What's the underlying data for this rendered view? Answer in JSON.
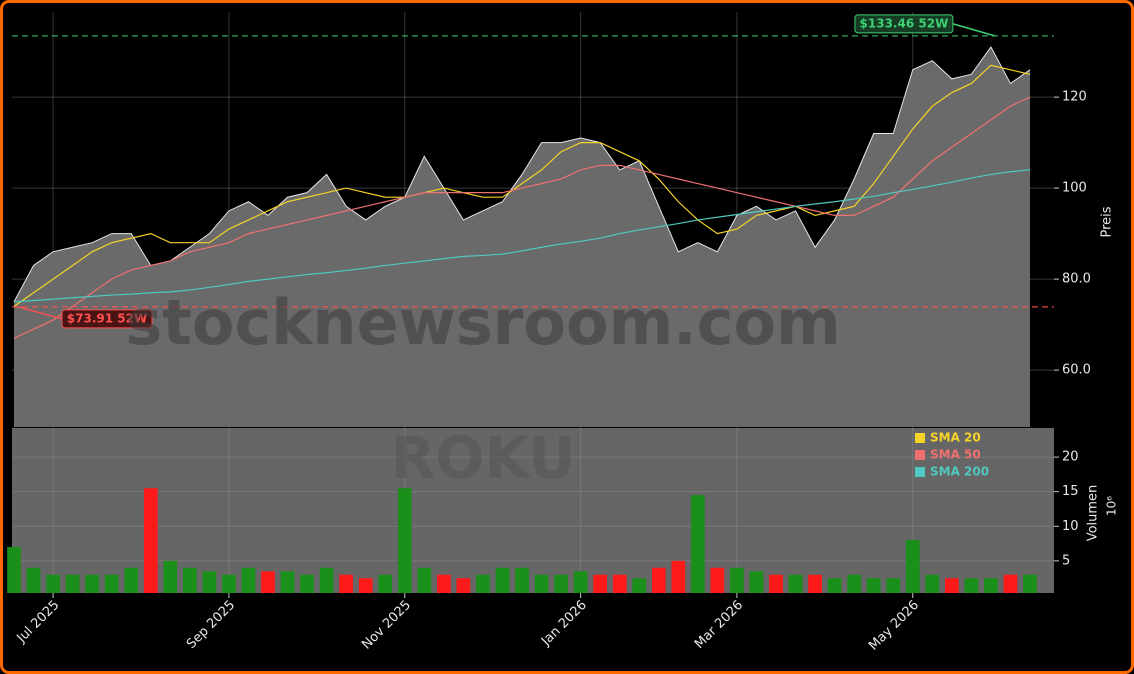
{
  "chart_data": {
    "type": "line",
    "categories": [
      null,
      null,
      "Jul 2025",
      null,
      null,
      null,
      null,
      null,
      null,
      null,
      null,
      "Sep 2025",
      null,
      null,
      null,
      null,
      null,
      null,
      null,
      null,
      "Nov 2025",
      null,
      null,
      null,
      null,
      null,
      null,
      null,
      null,
      "Jan 2026",
      null,
      null,
      null,
      null,
      null,
      null,
      null,
      "Mar 2026",
      null,
      null,
      null,
      null,
      null,
      null,
      null,
      null,
      "May 2026",
      null,
      null,
      null,
      null,
      null,
      null
    ],
    "price": {
      "values": [
        75,
        83,
        86,
        87,
        88,
        90,
        90,
        83,
        84,
        87,
        90,
        95,
        97,
        94,
        98,
        99,
        103,
        96,
        93,
        96,
        98,
        107,
        100,
        93,
        95,
        97,
        103,
        110,
        110,
        111,
        110,
        104,
        106,
        96,
        86,
        88,
        86,
        94,
        96,
        93,
        95,
        87,
        93,
        102,
        112,
        112,
        126,
        128,
        124,
        125,
        131,
        123,
        126
      ],
      "color": "#e6e6e6",
      "fill": "#6a6a6a"
    },
    "series": [
      {
        "name": "SMA 20",
        "color": "#f5d327",
        "values": [
          74,
          77,
          80,
          83,
          86,
          88,
          89,
          90,
          88,
          88,
          88,
          91,
          93,
          95,
          97,
          98,
          99,
          100,
          99,
          98,
          98,
          99,
          100,
          99,
          98,
          98,
          101,
          104,
          108,
          110,
          110,
          108,
          106,
          102,
          97,
          93,
          90,
          91,
          94,
          95,
          96,
          94,
          95,
          96,
          101,
          107,
          113,
          118,
          121,
          123,
          127,
          126,
          125
        ]
      },
      {
        "name": "SMA 50",
        "color": "#f07070",
        "values": [
          67,
          69,
          71,
          74,
          77,
          80,
          82,
          83,
          84,
          86,
          87,
          88,
          90,
          91,
          92,
          93,
          94,
          95,
          96,
          97,
          98,
          99,
          99,
          99,
          99,
          99,
          100,
          101,
          102,
          104,
          105,
          105,
          104,
          103,
          102,
          101,
          100,
          99,
          98,
          97,
          96,
          95,
          94,
          94,
          96,
          98,
          102,
          106,
          109,
          112,
          115,
          118,
          120
        ]
      },
      {
        "name": "SMA 200",
        "color": "#4fc9c0",
        "values": [
          75,
          75.3,
          75.6,
          75.9,
          76.2,
          76.5,
          76.7,
          77,
          77.2,
          77.6,
          78.2,
          78.8,
          79.5,
          80,
          80.5,
          81,
          81.4,
          81.9,
          82.4,
          83,
          83.5,
          84,
          84.5,
          85,
          85.2,
          85.5,
          86.2,
          87,
          87.7,
          88.3,
          89,
          90,
          90.8,
          91.5,
          92.2,
          93,
          93.6,
          94.2,
          94.8,
          95.4,
          96,
          96.5,
          97,
          97.6,
          98.2,
          99,
          99.7,
          100.5,
          101.3,
          102.2,
          103,
          103.6,
          104
        ]
      }
    ],
    "ylim": [
      47.5,
      138.7
    ],
    "yticks": [
      {
        "value": 60,
        "label": "60.0"
      },
      {
        "value": 80,
        "label": "80.0"
      },
      100,
      120
    ],
    "ylabel": "Preis",
    "grid": true,
    "legend": "upper-right",
    "annotations": [
      {
        "value": 133.46,
        "label": "$133.46 52W",
        "color": "#3fcf75",
        "box": "#163d24"
      },
      {
        "value": 73.91,
        "label": "$73.91 52W",
        "color": "#ff5050",
        "box": "#4a1414"
      }
    ],
    "volume": {
      "values": [
        7,
        4,
        3,
        3,
        3,
        3,
        4,
        15.5,
        5,
        4,
        3.5,
        3,
        4,
        3.5,
        3.5,
        3,
        4,
        3,
        2.5,
        3,
        15.5,
        4,
        3,
        2.5,
        3,
        4,
        4,
        3,
        3,
        3.5,
        3,
        3,
        2.5,
        4,
        5,
        14.5,
        4,
        4,
        3.5,
        3,
        3,
        3,
        2.5,
        3,
        2.5,
        2.5,
        8,
        3,
        2.5,
        2.5,
        2.5,
        3,
        3
      ],
      "up_color": "#1a8f1a",
      "down_color": "#ff1a1a",
      "ylim": [
        0.36,
        24.2
      ],
      "yticks": [
        5,
        10,
        15,
        20
      ],
      "ylabel": "Volumen",
      "scale_label": "10⁶"
    },
    "watermark": "stocknewsroom.com",
    "symbol": "ROKU"
  }
}
